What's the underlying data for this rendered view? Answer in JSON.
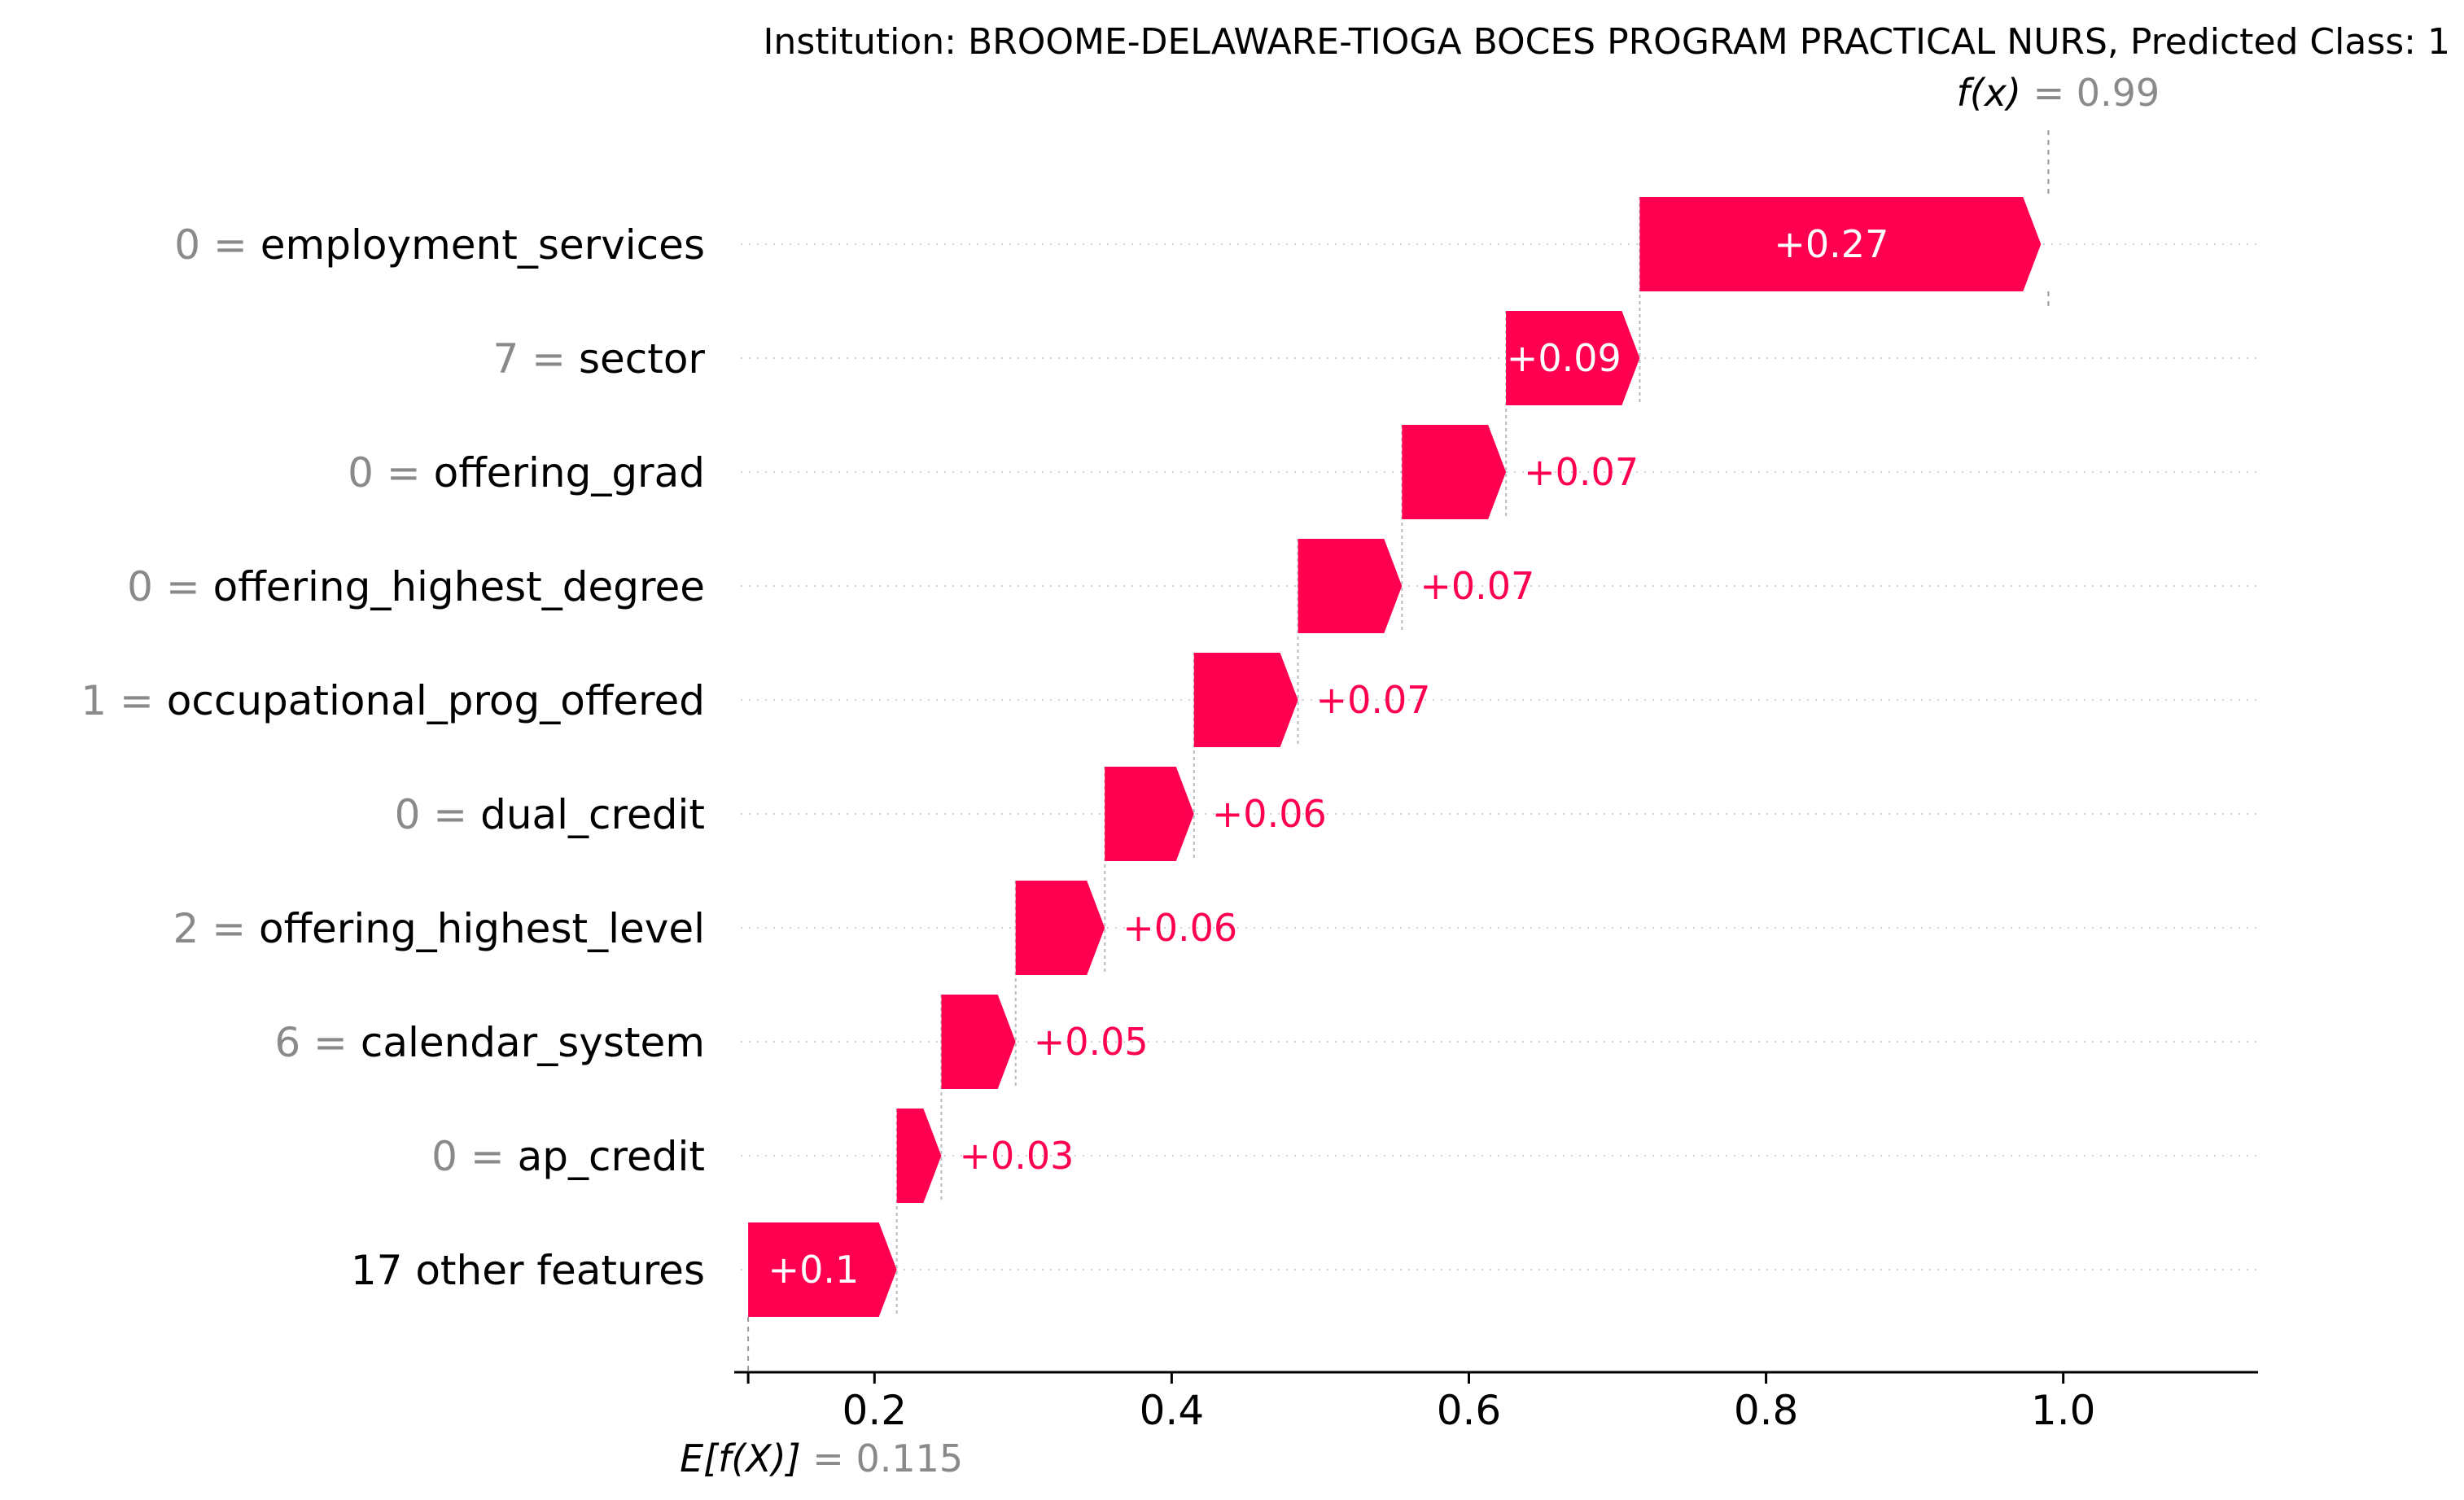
{
  "chart_data": {
    "type": "waterfall",
    "title": "Institution: BROOME-DELAWARE-TIOGA BOCES PROGRAM PRACTICAL NURS, Predicted Class: 1",
    "base_value": 0.115,
    "base_label": "E[f(X)]",
    "base_value_label": "= 0.115",
    "output_value": 0.99,
    "output_label": "f(x)",
    "output_value_label": "= 0.99",
    "xlim": [
      0.11,
      1.13
    ],
    "xticks": [
      0.2,
      0.4,
      0.6,
      0.8,
      1.0
    ],
    "xtick_labels": [
      "0.2",
      "0.4",
      "0.6",
      "0.8",
      "1.0"
    ],
    "grid": "horizontal dotted",
    "features": [
      {
        "value": "0",
        "name": "employment_services",
        "shap": 0.27,
        "label": "+0.27"
      },
      {
        "value": "7",
        "name": "sector",
        "shap": 0.09,
        "label": "+0.09"
      },
      {
        "value": "0",
        "name": "offering_grad",
        "shap": 0.07,
        "label": "+0.07"
      },
      {
        "value": "0",
        "name": "offering_highest_degree",
        "shap": 0.07,
        "label": "+0.07"
      },
      {
        "value": "1",
        "name": "occupational_prog_offered",
        "shap": 0.07,
        "label": "+0.07"
      },
      {
        "value": "0",
        "name": "dual_credit",
        "shap": 0.06,
        "label": "+0.06"
      },
      {
        "value": "2",
        "name": "offering_highest_level",
        "shap": 0.06,
        "label": "+0.06"
      },
      {
        "value": "6",
        "name": "calendar_system",
        "shap": 0.05,
        "label": "+0.05"
      },
      {
        "value": "0",
        "name": "ap_credit",
        "shap": 0.03,
        "label": "+0.03"
      },
      {
        "value": "",
        "name": "17 other features",
        "shap": 0.1,
        "label": "+0.1"
      }
    ],
    "colors": {
      "positive": "#ff0051",
      "feature_value_text": "#8a8a8a",
      "connector": "#bbbbbb",
      "grid": "#d0d0d0"
    }
  }
}
